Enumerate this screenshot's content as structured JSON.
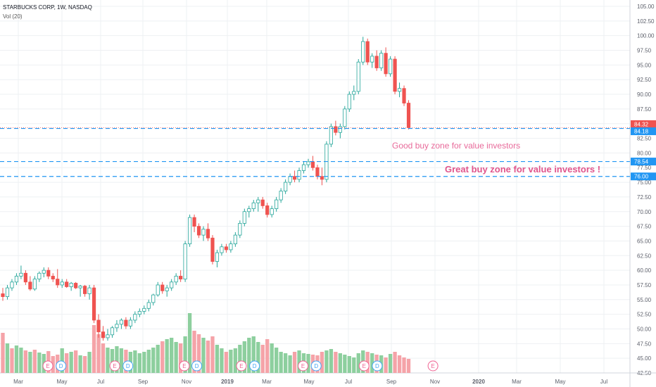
{
  "header": {
    "symbol_line": "STARBUCKS CORP, 1W, NASDAQ",
    "vol_line": "Vol (20)"
  },
  "annotations": {
    "good_zone": "Good buy zone for value investors",
    "great_zone": "Great buy zone for value investors !"
  },
  "colors": {
    "up": "#26a69a",
    "down": "#ef5350",
    "vol_up": "#8dcf9e",
    "vol_down": "#f5a3a8",
    "hline": "#2196f3",
    "price_tag_last": "#ef5350",
    "price_tag_hline": "#2196f3",
    "grid": "#eef0f3",
    "text": "#5d606b",
    "annot_pink": "#e86a9a"
  },
  "chart_data": {
    "type": "candlestick",
    "title": "STARBUCKS CORP, 1W, NASDAQ",
    "y_axis_ticks": [
      "105.00",
      "102.50",
      "100.00",
      "97.50",
      "95.00",
      "92.50",
      "90.00",
      "87.50",
      "85.00",
      "82.50",
      "80.00",
      "77.50",
      "75.00",
      "72.50",
      "70.00",
      "67.50",
      "65.00",
      "62.50",
      "60.00",
      "57.50",
      "55.00",
      "52.50",
      "50.00",
      "47.50",
      "45.00",
      "42.50"
    ],
    "ylim": [
      42.5,
      105
    ],
    "x_axis_ticks": [
      "Mar",
      "May",
      "Jul",
      "Sep",
      "Nov",
      "2019",
      "Mar",
      "May",
      "Jul",
      "Sep",
      "Nov",
      "2020",
      "Mar",
      "May",
      "Jul"
    ],
    "price_tags": [
      {
        "label": "84.32",
        "value": 84.32,
        "kind": "last"
      },
      {
        "label": "84.18",
        "value": 84.18,
        "kind": "hline"
      },
      {
        "label": "78.54",
        "value": 78.54,
        "kind": "hline"
      },
      {
        "label": "76.00",
        "value": 76.0,
        "kind": "hline"
      }
    ],
    "horizontal_lines": [
      84.18,
      78.54,
      76.0
    ],
    "series": [
      {
        "o": 56.0,
        "h": 57.0,
        "l": 54.8,
        "c": 55.5
      },
      {
        "o": 55.5,
        "h": 57.5,
        "l": 55.0,
        "c": 57.0
      },
      {
        "o": 57.0,
        "h": 58.5,
        "l": 56.5,
        "c": 58.0
      },
      {
        "o": 58.0,
        "h": 59.5,
        "l": 57.5,
        "c": 59.0
      },
      {
        "o": 59.0,
        "h": 60.8,
        "l": 58.5,
        "c": 59.5
      },
      {
        "o": 59.5,
        "h": 60.0,
        "l": 57.5,
        "c": 58.0
      },
      {
        "o": 58.0,
        "h": 59.0,
        "l": 56.5,
        "c": 56.8
      },
      {
        "o": 56.8,
        "h": 59.0,
        "l": 56.5,
        "c": 58.5
      },
      {
        "o": 58.5,
        "h": 59.8,
        "l": 58.0,
        "c": 59.5
      },
      {
        "o": 59.5,
        "h": 60.5,
        "l": 58.8,
        "c": 60.0
      },
      {
        "o": 60.0,
        "h": 60.5,
        "l": 58.5,
        "c": 59.0
      },
      {
        "o": 59.0,
        "h": 59.5,
        "l": 58.0,
        "c": 58.5
      },
      {
        "o": 58.5,
        "h": 60.2,
        "l": 57.0,
        "c": 57.5
      },
      {
        "o": 57.5,
        "h": 58.5,
        "l": 57.0,
        "c": 58.0
      },
      {
        "o": 58.0,
        "h": 58.5,
        "l": 57.0,
        "c": 57.2
      },
      {
        "o": 57.2,
        "h": 58.0,
        "l": 56.5,
        "c": 57.8
      },
      {
        "o": 57.8,
        "h": 58.0,
        "l": 56.8,
        "c": 57.0
      },
      {
        "o": 57.0,
        "h": 57.5,
        "l": 55.5,
        "c": 57.3
      },
      {
        "o": 57.3,
        "h": 57.5,
        "l": 55.5,
        "c": 56.0
      },
      {
        "o": 56.0,
        "h": 57.5,
        "l": 55.0,
        "c": 57.0
      },
      {
        "o": 57.0,
        "h": 57.5,
        "l": 51.0,
        "c": 51.5
      },
      {
        "o": 51.5,
        "h": 52.5,
        "l": 48.5,
        "c": 49.5
      },
      {
        "o": 49.5,
        "h": 50.5,
        "l": 48.0,
        "c": 48.5
      },
      {
        "o": 48.5,
        "h": 50.0,
        "l": 48.0,
        "c": 49.0
      },
      {
        "o": 49.0,
        "h": 50.5,
        "l": 48.5,
        "c": 50.2
      },
      {
        "o": 50.2,
        "h": 51.5,
        "l": 49.5,
        "c": 50.8
      },
      {
        "o": 50.8,
        "h": 51.8,
        "l": 50.0,
        "c": 51.5
      },
      {
        "o": 51.5,
        "h": 52.0,
        "l": 50.0,
        "c": 50.5
      },
      {
        "o": 50.5,
        "h": 52.0,
        "l": 50.0,
        "c": 51.5
      },
      {
        "o": 51.5,
        "h": 53.0,
        "l": 51.0,
        "c": 52.5
      },
      {
        "o": 52.5,
        "h": 53.5,
        "l": 52.0,
        "c": 53.0
      },
      {
        "o": 53.0,
        "h": 54.0,
        "l": 52.5,
        "c": 53.5
      },
      {
        "o": 53.5,
        "h": 55.0,
        "l": 53.0,
        "c": 54.5
      },
      {
        "o": 54.5,
        "h": 56.0,
        "l": 54.0,
        "c": 55.8
      },
      {
        "o": 55.8,
        "h": 58.0,
        "l": 55.5,
        "c": 57.5
      },
      {
        "o": 57.5,
        "h": 58.0,
        "l": 56.0,
        "c": 56.5
      },
      {
        "o": 56.5,
        "h": 57.5,
        "l": 55.5,
        "c": 57.0
      },
      {
        "o": 57.0,
        "h": 58.5,
        "l": 56.5,
        "c": 58.0
      },
      {
        "o": 58.0,
        "h": 59.5,
        "l": 57.5,
        "c": 59.0
      },
      {
        "o": 59.0,
        "h": 60.0,
        "l": 58.0,
        "c": 58.5
      },
      {
        "o": 58.5,
        "h": 65.0,
        "l": 58.0,
        "c": 64.5
      },
      {
        "o": 64.5,
        "h": 69.5,
        "l": 64.0,
        "c": 69.0
      },
      {
        "o": 69.0,
        "h": 69.5,
        "l": 66.5,
        "c": 67.5
      },
      {
        "o": 67.5,
        "h": 68.0,
        "l": 65.5,
        "c": 66.0
      },
      {
        "o": 66.0,
        "h": 67.5,
        "l": 65.0,
        "c": 67.0
      },
      {
        "o": 67.0,
        "h": 68.0,
        "l": 65.0,
        "c": 65.5
      },
      {
        "o": 65.5,
        "h": 66.0,
        "l": 61.0,
        "c": 61.5
      },
      {
        "o": 61.5,
        "h": 63.5,
        "l": 60.5,
        "c": 63.0
      },
      {
        "o": 63.0,
        "h": 64.5,
        "l": 62.5,
        "c": 64.0
      },
      {
        "o": 64.0,
        "h": 64.5,
        "l": 63.0,
        "c": 63.5
      },
      {
        "o": 63.5,
        "h": 65.0,
        "l": 63.0,
        "c": 64.5
      },
      {
        "o": 64.5,
        "h": 66.5,
        "l": 64.0,
        "c": 66.0
      },
      {
        "o": 66.0,
        "h": 68.5,
        "l": 65.5,
        "c": 68.0
      },
      {
        "o": 68.0,
        "h": 70.5,
        "l": 67.5,
        "c": 70.0
      },
      {
        "o": 70.0,
        "h": 71.0,
        "l": 69.0,
        "c": 70.5
      },
      {
        "o": 70.5,
        "h": 72.0,
        "l": 70.0,
        "c": 71.5
      },
      {
        "o": 71.5,
        "h": 72.5,
        "l": 70.0,
        "c": 72.0
      },
      {
        "o": 72.0,
        "h": 72.5,
        "l": 70.5,
        "c": 71.0
      },
      {
        "o": 71.0,
        "h": 71.5,
        "l": 69.0,
        "c": 69.5
      },
      {
        "o": 69.5,
        "h": 71.0,
        "l": 69.0,
        "c": 70.5
      },
      {
        "o": 70.5,
        "h": 72.5,
        "l": 70.0,
        "c": 72.0
      },
      {
        "o": 72.0,
        "h": 74.0,
        "l": 71.5,
        "c": 73.5
      },
      {
        "o": 73.5,
        "h": 75.5,
        "l": 73.0,
        "c": 75.0
      },
      {
        "o": 75.0,
        "h": 76.5,
        "l": 74.5,
        "c": 76.0
      },
      {
        "o": 76.0,
        "h": 77.0,
        "l": 75.0,
        "c": 75.5
      },
      {
        "o": 75.5,
        "h": 77.5,
        "l": 75.0,
        "c": 77.0
      },
      {
        "o": 77.0,
        "h": 78.5,
        "l": 76.5,
        "c": 78.0
      },
      {
        "o": 78.0,
        "h": 79.0,
        "l": 77.5,
        "c": 78.5
      },
      {
        "o": 78.5,
        "h": 79.5,
        "l": 77.0,
        "c": 77.5
      },
      {
        "o": 77.5,
        "h": 78.0,
        "l": 75.5,
        "c": 76.0
      },
      {
        "o": 76.0,
        "h": 77.5,
        "l": 74.5,
        "c": 75.5
      },
      {
        "o": 75.5,
        "h": 82.0,
        "l": 75.0,
        "c": 81.5
      },
      {
        "o": 81.5,
        "h": 85.0,
        "l": 81.0,
        "c": 84.5
      },
      {
        "o": 84.5,
        "h": 85.5,
        "l": 83.0,
        "c": 83.5
      },
      {
        "o": 83.5,
        "h": 85.0,
        "l": 82.5,
        "c": 84.5
      },
      {
        "o": 84.5,
        "h": 88.0,
        "l": 84.0,
        "c": 87.5
      },
      {
        "o": 87.5,
        "h": 90.5,
        "l": 87.0,
        "c": 90.0
      },
      {
        "o": 90.0,
        "h": 91.5,
        "l": 89.0,
        "c": 90.5
      },
      {
        "o": 90.5,
        "h": 96.0,
        "l": 90.0,
        "c": 95.5
      },
      {
        "o": 95.5,
        "h": 99.8,
        "l": 95.0,
        "c": 99.0
      },
      {
        "o": 99.0,
        "h": 99.5,
        "l": 95.0,
        "c": 95.5
      },
      {
        "o": 95.5,
        "h": 97.0,
        "l": 94.5,
        "c": 96.5
      },
      {
        "o": 96.5,
        "h": 97.5,
        "l": 94.0,
        "c": 94.5
      },
      {
        "o": 94.5,
        "h": 97.5,
        "l": 94.0,
        "c": 97.0
      },
      {
        "o": 97.0,
        "h": 98.0,
        "l": 93.0,
        "c": 93.5
      },
      {
        "o": 93.5,
        "h": 96.5,
        "l": 93.0,
        "c": 96.0
      },
      {
        "o": 96.0,
        "h": 96.5,
        "l": 90.0,
        "c": 90.5
      },
      {
        "o": 90.5,
        "h": 92.0,
        "l": 89.5,
        "c": 91.0
      },
      {
        "o": 91.0,
        "h": 91.5,
        "l": 88.0,
        "c": 88.5
      },
      {
        "o": 88.5,
        "h": 89.0,
        "l": 84.0,
        "c": 84.32
      }
    ],
    "volume": [
      {
        "v": 0.57,
        "d": 1
      },
      {
        "v": 0.42,
        "d": 0
      },
      {
        "v": 0.35,
        "d": 1
      },
      {
        "v": 0.39,
        "d": 0
      },
      {
        "v": 0.36,
        "d": 0
      },
      {
        "v": 0.32,
        "d": 1
      },
      {
        "v": 0.3,
        "d": 0
      },
      {
        "v": 0.33,
        "d": 1
      },
      {
        "v": 0.29,
        "d": 0
      },
      {
        "v": 0.27,
        "d": 0
      },
      {
        "v": 0.31,
        "d": 1
      },
      {
        "v": 0.24,
        "d": 1
      },
      {
        "v": 0.26,
        "d": 1
      },
      {
        "v": 0.35,
        "d": 0
      },
      {
        "v": 0.28,
        "d": 1
      },
      {
        "v": 0.3,
        "d": 0
      },
      {
        "v": 0.32,
        "d": 1
      },
      {
        "v": 0.25,
        "d": 0
      },
      {
        "v": 0.24,
        "d": 1
      },
      {
        "v": 0.3,
        "d": 0
      },
      {
        "v": 0.68,
        "d": 1
      },
      {
        "v": 0.55,
        "d": 1
      },
      {
        "v": 0.42,
        "d": 1
      },
      {
        "v": 0.36,
        "d": 0
      },
      {
        "v": 0.34,
        "d": 0
      },
      {
        "v": 0.38,
        "d": 0
      },
      {
        "v": 0.35,
        "d": 0
      },
      {
        "v": 0.33,
        "d": 1
      },
      {
        "v": 0.3,
        "d": 0
      },
      {
        "v": 0.32,
        "d": 0
      },
      {
        "v": 0.28,
        "d": 0
      },
      {
        "v": 0.3,
        "d": 0
      },
      {
        "v": 0.33,
        "d": 0
      },
      {
        "v": 0.36,
        "d": 0
      },
      {
        "v": 0.4,
        "d": 0
      },
      {
        "v": 0.45,
        "d": 1
      },
      {
        "v": 0.48,
        "d": 0
      },
      {
        "v": 0.5,
        "d": 0
      },
      {
        "v": 0.44,
        "d": 0
      },
      {
        "v": 0.42,
        "d": 1
      },
      {
        "v": 0.52,
        "d": 0
      },
      {
        "v": 0.85,
        "d": 0
      },
      {
        "v": 0.6,
        "d": 1
      },
      {
        "v": 0.55,
        "d": 1
      },
      {
        "v": 0.5,
        "d": 0
      },
      {
        "v": 0.46,
        "d": 1
      },
      {
        "v": 0.52,
        "d": 1
      },
      {
        "v": 0.4,
        "d": 0
      },
      {
        "v": 0.35,
        "d": 0
      },
      {
        "v": 0.3,
        "d": 1
      },
      {
        "v": 0.33,
        "d": 0
      },
      {
        "v": 0.35,
        "d": 0
      },
      {
        "v": 0.4,
        "d": 0
      },
      {
        "v": 0.45,
        "d": 0
      },
      {
        "v": 0.5,
        "d": 0
      },
      {
        "v": 0.52,
        "d": 0
      },
      {
        "v": 0.44,
        "d": 0
      },
      {
        "v": 0.4,
        "d": 1
      },
      {
        "v": 0.48,
        "d": 1
      },
      {
        "v": 0.42,
        "d": 0
      },
      {
        "v": 0.36,
        "d": 0
      },
      {
        "v": 0.3,
        "d": 0
      },
      {
        "v": 0.28,
        "d": 0
      },
      {
        "v": 0.25,
        "d": 0
      },
      {
        "v": 0.3,
        "d": 1
      },
      {
        "v": 0.32,
        "d": 0
      },
      {
        "v": 0.28,
        "d": 0
      },
      {
        "v": 0.27,
        "d": 0
      },
      {
        "v": 0.26,
        "d": 1
      },
      {
        "v": 0.25,
        "d": 1
      },
      {
        "v": 0.3,
        "d": 1
      },
      {
        "v": 0.32,
        "d": 0
      },
      {
        "v": 0.34,
        "d": 0
      },
      {
        "v": 0.3,
        "d": 1
      },
      {
        "v": 0.28,
        "d": 0
      },
      {
        "v": 0.26,
        "d": 0
      },
      {
        "v": 0.24,
        "d": 0
      },
      {
        "v": 0.22,
        "d": 0
      },
      {
        "v": 0.28,
        "d": 0
      },
      {
        "v": 0.32,
        "d": 0
      },
      {
        "v": 0.3,
        "d": 1
      },
      {
        "v": 0.28,
        "d": 0
      },
      {
        "v": 0.26,
        "d": 1
      },
      {
        "v": 0.25,
        "d": 0
      },
      {
        "v": 0.22,
        "d": 1
      },
      {
        "v": 0.27,
        "d": 0
      },
      {
        "v": 0.3,
        "d": 1
      },
      {
        "v": 0.25,
        "d": 1
      },
      {
        "v": 0.22,
        "d": 1
      },
      {
        "v": 0.2,
        "d": 1
      }
    ],
    "event_markers": [
      {
        "label": "E",
        "pos": 0.073
      },
      {
        "label": "D",
        "pos": 0.093
      },
      {
        "label": "E",
        "pos": 0.175
      },
      {
        "label": "D",
        "pos": 0.195
      },
      {
        "label": "E",
        "pos": 0.281
      },
      {
        "label": "D",
        "pos": 0.3
      },
      {
        "label": "E",
        "pos": 0.368
      },
      {
        "label": "D",
        "pos": 0.388
      },
      {
        "label": "E",
        "pos": 0.462
      },
      {
        "label": "D",
        "pos": 0.482
      },
      {
        "label": "E",
        "pos": 0.555
      },
      {
        "label": "D",
        "pos": 0.575
      },
      {
        "label": "E",
        "pos": 0.66
      }
    ]
  }
}
